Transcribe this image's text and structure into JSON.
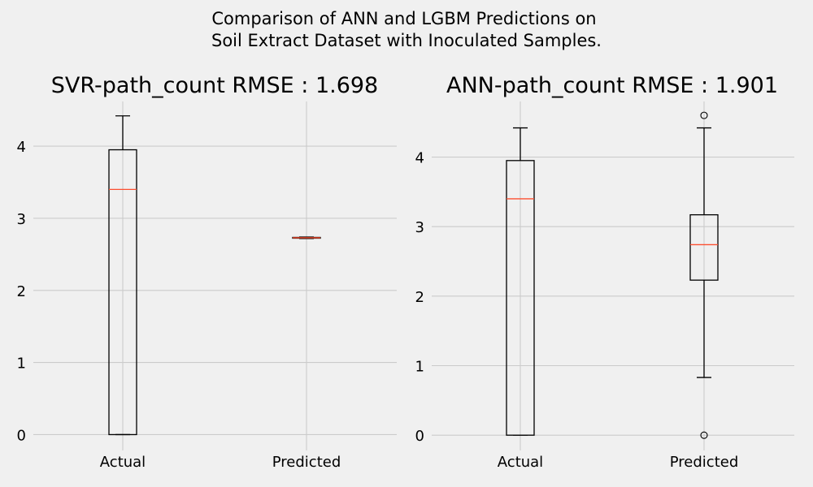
{
  "figure": {
    "suptitle_line1": "Comparison of ANN and LGBM Predictions on",
    "suptitle_line2": "Soil Extract Dataset with Inoculated Samples.",
    "colors": {
      "background": "#f0f0f0",
      "grid": "#cbcbcb",
      "box": "#000000",
      "median": "#fc4f30"
    }
  },
  "chart_data": [
    {
      "type": "box",
      "title": "SVR-path_count RMSE : 1.698",
      "categories": [
        "Actual",
        "Predicted"
      ],
      "yticks": [
        0,
        1,
        2,
        3,
        4
      ],
      "ylim": [
        -0.22,
        4.62
      ],
      "grid": true,
      "boxes": [
        {
          "label": "Actual",
          "whisker_low": 0,
          "q1": 0,
          "median": 3.4,
          "q3": 3.95,
          "whisker_high": 4.42,
          "fliers": []
        },
        {
          "label": "Predicted",
          "whisker_low": 2.72,
          "q1": 2.725,
          "median": 2.73,
          "q3": 2.735,
          "whisker_high": 2.74,
          "fliers": []
        }
      ]
    },
    {
      "type": "box",
      "title": "ANN-path_count RMSE : 1.901",
      "categories": [
        "Actual",
        "Predicted"
      ],
      "yticks": [
        0,
        1,
        2,
        3,
        4
      ],
      "ylim": [
        -0.22,
        4.8
      ],
      "grid": true,
      "boxes": [
        {
          "label": "Actual",
          "whisker_low": 0,
          "q1": 0,
          "median": 3.4,
          "q3": 3.95,
          "whisker_high": 4.42,
          "fliers": []
        },
        {
          "label": "Predicted",
          "whisker_low": 0.83,
          "q1": 2.23,
          "median": 2.74,
          "q3": 3.17,
          "whisker_high": 4.42,
          "fliers": [
            0,
            4.6
          ]
        }
      ]
    }
  ]
}
